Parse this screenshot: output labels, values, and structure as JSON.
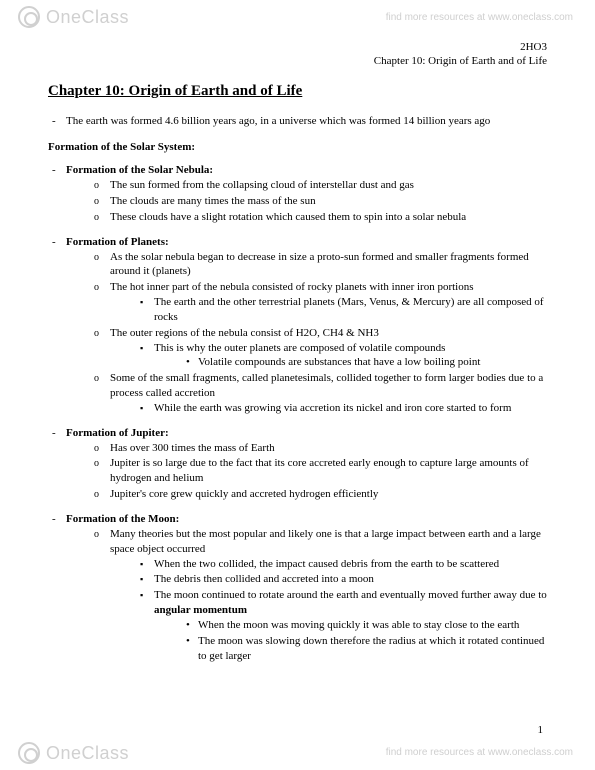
{
  "watermark": {
    "brand": "OneClass",
    "link": "find more resources at www.oneclass.com"
  },
  "header": {
    "course": "2HO3",
    "chapter_ref": "Chapter 10: Origin of Earth and of Life"
  },
  "title": "Chapter 10: Origin of Earth and of Life",
  "intro": "The earth was formed 4.6 billion years ago, in a universe which was formed 14 billion years ago",
  "section1": {
    "heading": "Formation of the Solar System:",
    "sub1": {
      "heading": "Formation of the Solar Nebula:",
      "items": [
        "The sun formed from the collapsing cloud of interstellar dust and gas",
        "The clouds are many times the mass of the sun",
        "These clouds have a slight rotation which caused them to spin into a solar nebula"
      ]
    },
    "sub2": {
      "heading": "Formation of Planets:",
      "i0": "As the solar nebula began to decrease in size a proto-sun formed and smaller fragments formed around it (planets)",
      "i1": "The hot inner part of the nebula consisted of rocky planets with inner iron portions",
      "i1a": "The earth and the other terrestrial planets (Mars, Venus, & Mercury) are all composed of rocks",
      "i2": "The outer regions of the nebula consist of H2O, CH4 & NH3",
      "i2a": "This is why the outer planets are composed of volatile compounds",
      "i2a1": "Volatile compounds are substances that have a low boiling point",
      "i3": "Some of the small fragments, called planetesimals, collided together to form larger bodies due to a process called accretion",
      "i3a": "While the earth was growing via accretion its nickel and iron core started to form"
    },
    "sub3": {
      "heading": "Formation of Jupiter:",
      "items": [
        "Has over 300 times the mass of Earth",
        "Jupiter is so large due to the fact that its core accreted early enough to capture large amounts of hydrogen and helium",
        "Jupiter's core grew quickly and accreted hydrogen efficiently"
      ]
    },
    "sub4": {
      "heading": "Formation of the Moon:",
      "i0": "Many theories but the most popular and likely one is that a large impact between earth and a large space object occurred",
      "i0a": "When the two collided, the impact caused debris from the earth to be scattered",
      "i0b": "The debris then collided and accreted into a moon",
      "i0c_pre": "The moon continued to rotate around the earth and eventually moved further away due to ",
      "i0c_bold": "angular momentum",
      "i0c1": "When the moon was moving quickly it was able to stay close to the earth",
      "i0c2": "The moon was slowing down therefore the radius at which it rotated continued to get larger"
    }
  },
  "page_number": "1"
}
